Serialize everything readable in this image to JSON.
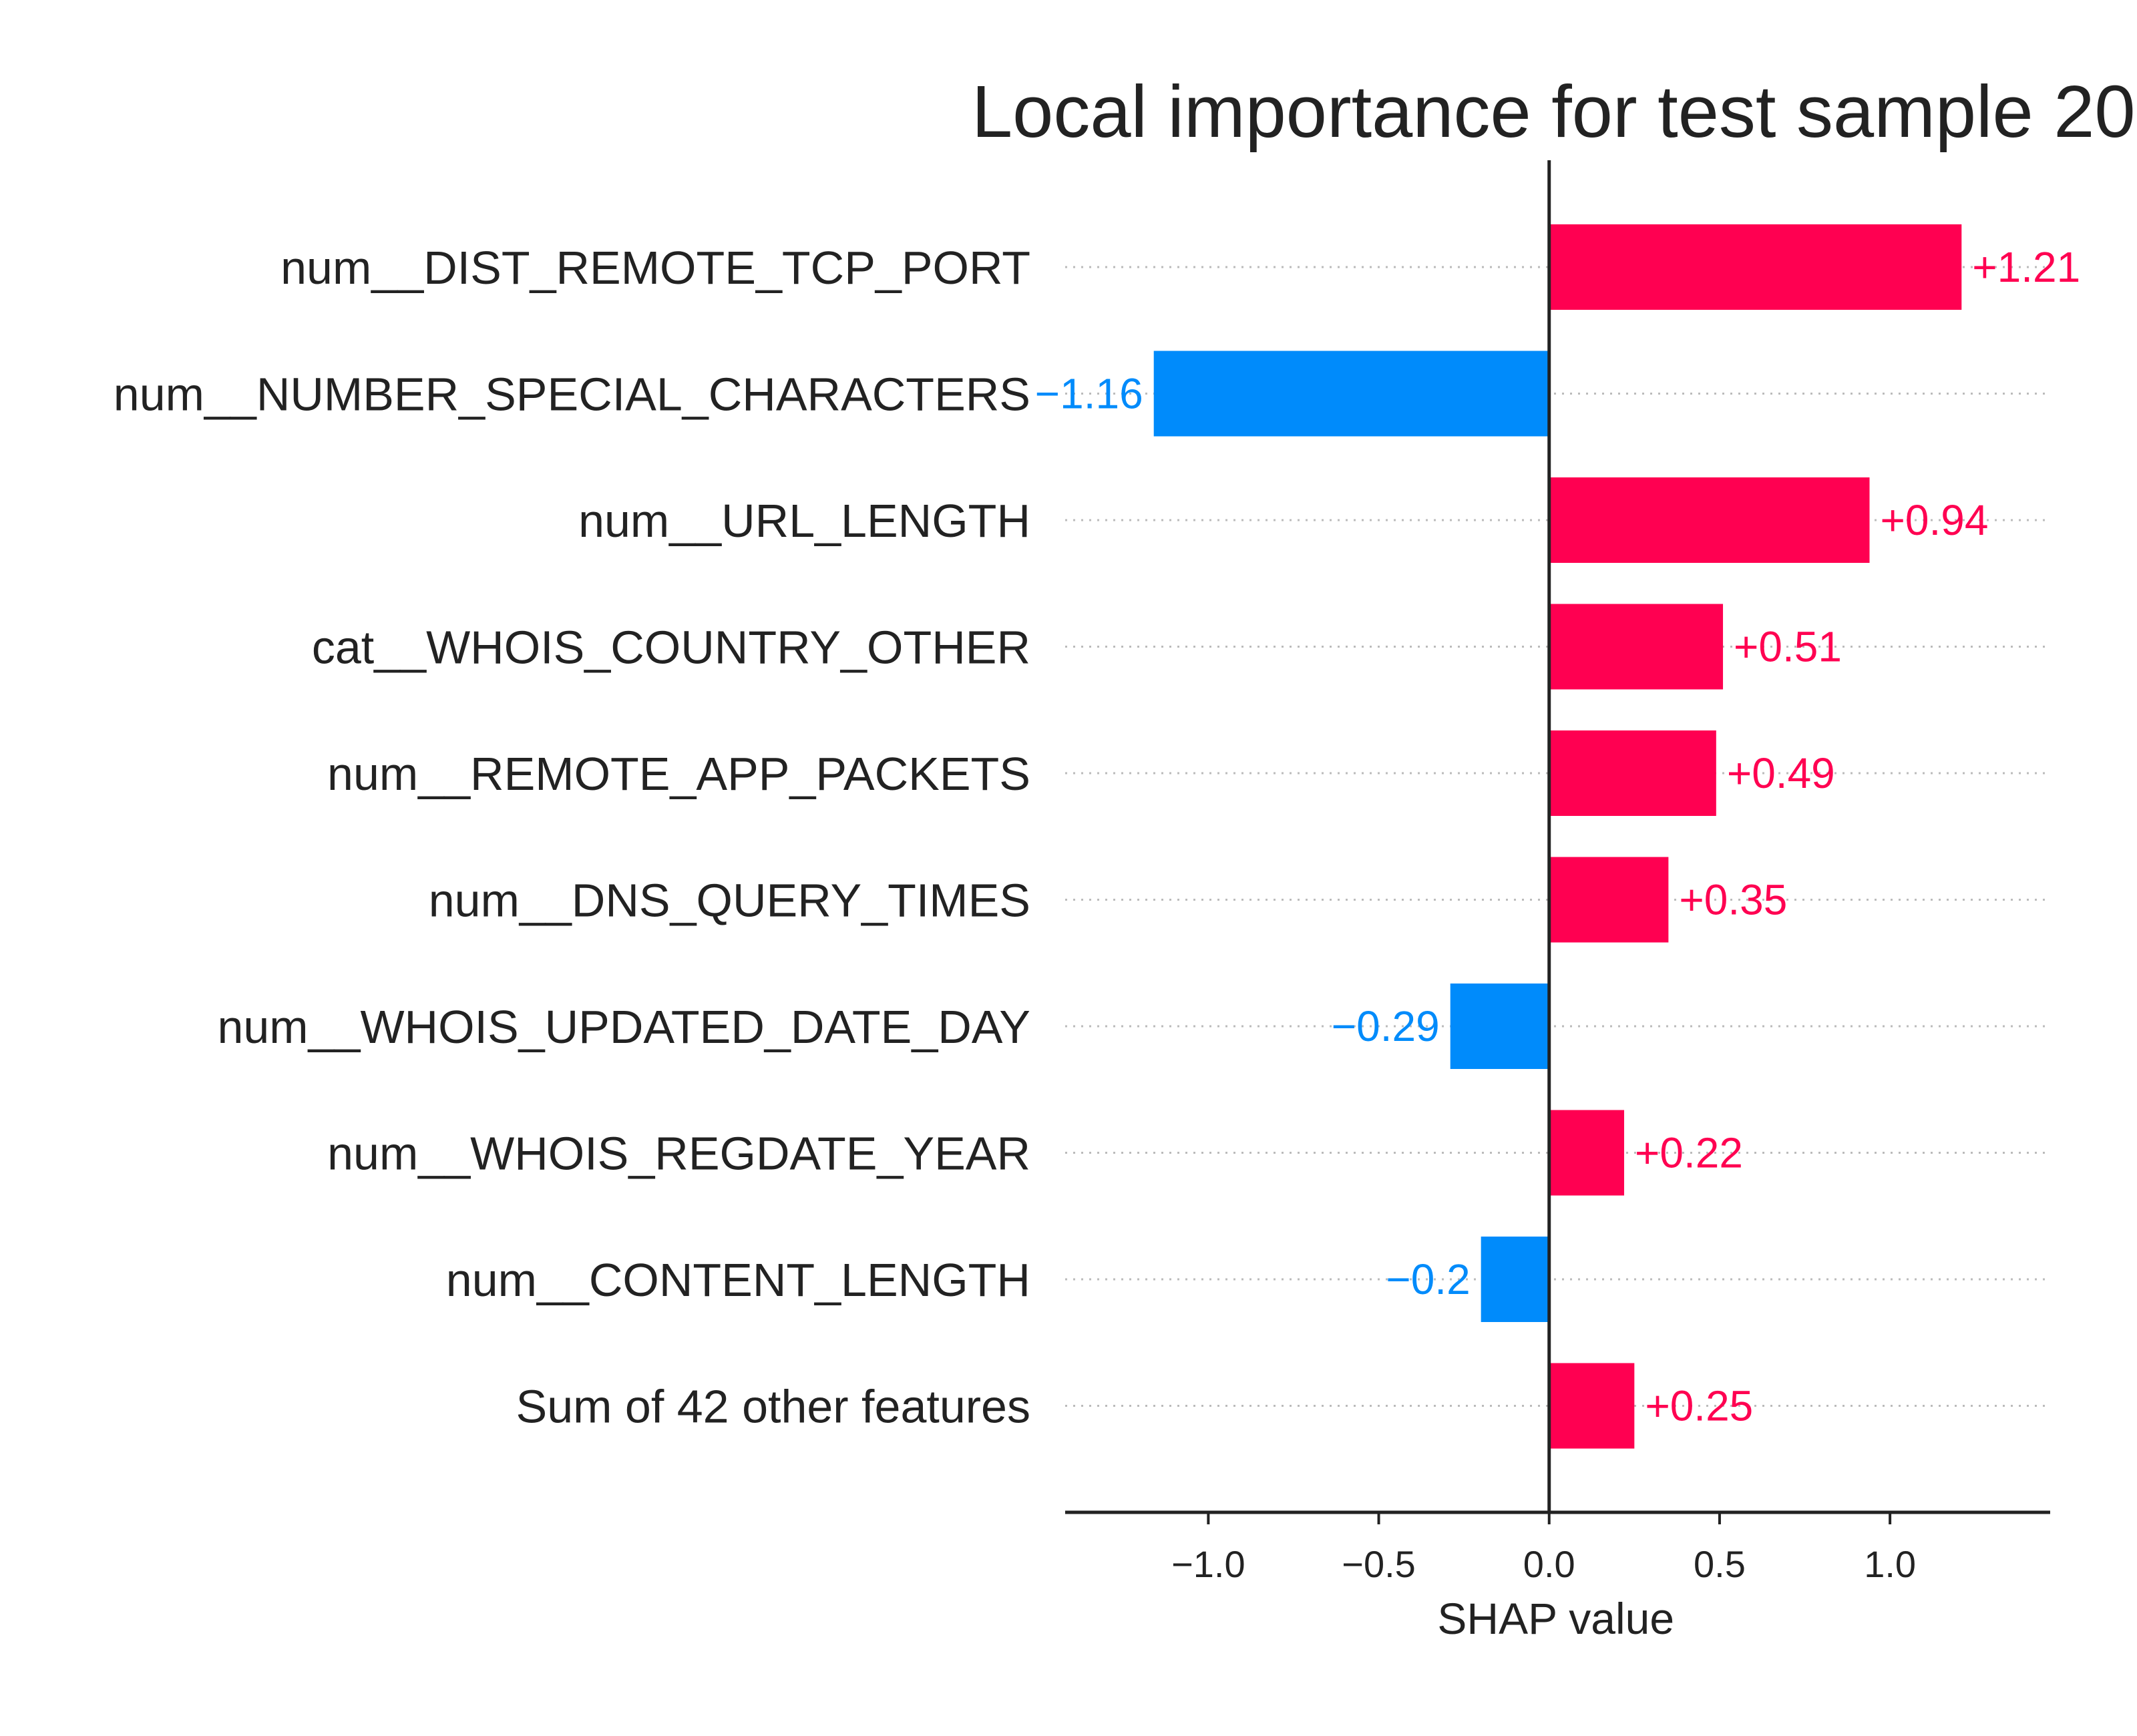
{
  "chart_data": {
    "type": "bar",
    "orientation": "horizontal",
    "title": "Local importance for test sample 20",
    "xlabel": "SHAP value",
    "ylabel": "",
    "xlim": [
      -1.42,
      1.47
    ],
    "xticks": [
      -1.0,
      -0.5,
      0.0,
      0.5,
      1.0
    ],
    "xtick_labels": [
      "−1.0",
      "−0.5",
      "0.0",
      "0.5",
      "1.0"
    ],
    "grid": false,
    "legend": "none",
    "categories": [
      "num__DIST_REMOTE_TCP_PORT",
      "num__NUMBER_SPECIAL_CHARACTERS",
      "num__URL_LENGTH",
      "cat__WHOIS_COUNTRY_OTHER",
      "num__REMOTE_APP_PACKETS",
      "num__DNS_QUERY_TIMES",
      "num__WHOIS_UPDATED_DATE_DAY",
      "num__WHOIS_REGDATE_YEAR",
      "num__CONTENT_LENGTH",
      "Sum of 42 other features"
    ],
    "values": [
      1.21,
      -1.16,
      0.94,
      0.51,
      0.49,
      0.35,
      -0.29,
      0.22,
      -0.2,
      0.25
    ],
    "value_labels": [
      "+1.21",
      "−1.16",
      "+0.94",
      "+0.51",
      "+0.49",
      "+0.35",
      "−0.29",
      "+0.22",
      "−0.2",
      "+0.25"
    ],
    "colors": {
      "positive": "#ff0051",
      "negative": "#008bfb",
      "axis": "#222222",
      "dotted_line": "#bbbbbb"
    }
  }
}
